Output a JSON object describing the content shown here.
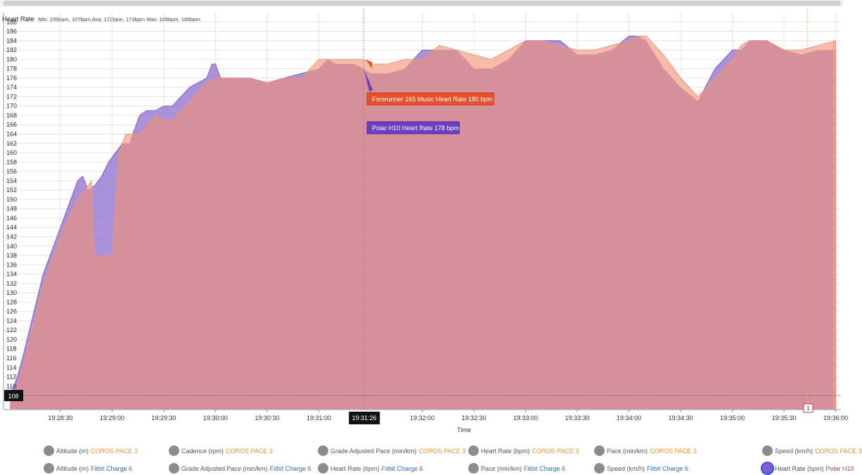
{
  "header": {
    "title": "Heart Rate",
    "stats": "Min: 105bpm, 107bpm Avg: 172bpm, 173bpm Max: 185bpm, 185bpm"
  },
  "chart_data": {
    "type": "area",
    "x_unit": "time",
    "xlabel": "Time",
    "ylabel": "",
    "ylim": [
      105,
      190
    ],
    "xlim": [
      "19:27:57",
      "19:36:03"
    ],
    "yticks": [
      110,
      112,
      114,
      116,
      118,
      120,
      122,
      124,
      126,
      128,
      130,
      132,
      134,
      136,
      138,
      140,
      142,
      144,
      146,
      148,
      150,
      152,
      154,
      156,
      158,
      160,
      162,
      164,
      166,
      168,
      170,
      172,
      174,
      176,
      178,
      180,
      182,
      184,
      186,
      188
    ],
    "xticks": [
      "19:28:30",
      "19:29:00",
      "19:29:30",
      "19:30:00",
      "19:30:30",
      "19:31:00",
      "19:32:00",
      "19:32:30",
      "19:33:00",
      "19:33:30",
      "19:34:00",
      "19:34:30",
      "19:35:00",
      "19:35:30",
      "19:36:00"
    ],
    "grid": true,
    "cursor": {
      "time": "19:31:26",
      "value_label": "108"
    },
    "marker_label": "1",
    "series": [
      {
        "name": "Polar H10 Heart Rate",
        "color": "#9b7fd4",
        "points": [
          [
            "19:28:01",
            108
          ],
          [
            "19:28:05",
            112
          ],
          [
            "19:28:08",
            116
          ],
          [
            "19:28:12",
            122
          ],
          [
            "19:28:16",
            128
          ],
          [
            "19:28:20",
            134
          ],
          [
            "19:28:24",
            138
          ],
          [
            "19:28:28",
            142
          ],
          [
            "19:28:32",
            146
          ],
          [
            "19:28:36",
            150
          ],
          [
            "19:28:40",
            154
          ],
          [
            "19:28:43",
            155
          ],
          [
            "19:28:46",
            152
          ],
          [
            "19:28:50",
            153
          ],
          [
            "19:28:54",
            155
          ],
          [
            "19:28:58",
            158
          ],
          [
            "19:29:02",
            160
          ],
          [
            "19:29:06",
            162
          ],
          [
            "19:29:10",
            162
          ],
          [
            "19:29:12",
            164
          ],
          [
            "19:29:16",
            168
          ],
          [
            "19:29:20",
            169
          ],
          [
            "19:29:25",
            169
          ],
          [
            "19:29:30",
            170
          ],
          [
            "19:29:35",
            170
          ],
          [
            "19:29:40",
            172
          ],
          [
            "19:29:45",
            174
          ],
          [
            "19:29:50",
            175
          ],
          [
            "19:29:55",
            176
          ],
          [
            "19:29:58",
            179
          ],
          [
            "19:30:00",
            179
          ],
          [
            "19:30:03",
            176
          ],
          [
            "19:30:10",
            176
          ],
          [
            "19:30:20",
            176
          ],
          [
            "19:30:30",
            175
          ],
          [
            "19:30:40",
            176
          ],
          [
            "19:30:50",
            177
          ],
          [
            "19:31:00",
            178
          ],
          [
            "19:31:05",
            180
          ],
          [
            "19:31:10",
            179
          ],
          [
            "19:31:15",
            179
          ],
          [
            "19:31:20",
            179
          ],
          [
            "19:31:26",
            178
          ],
          [
            "19:31:30",
            177
          ],
          [
            "19:31:40",
            177
          ],
          [
            "19:31:50",
            178
          ],
          [
            "19:32:00",
            182
          ],
          [
            "19:32:10",
            182
          ],
          [
            "19:32:20",
            182
          ],
          [
            "19:32:30",
            178
          ],
          [
            "19:32:40",
            178
          ],
          [
            "19:32:50",
            180
          ],
          [
            "19:33:00",
            184
          ],
          [
            "19:33:10",
            184
          ],
          [
            "19:33:20",
            184
          ],
          [
            "19:33:30",
            181
          ],
          [
            "19:33:40",
            181
          ],
          [
            "19:33:50",
            182
          ],
          [
            "19:34:00",
            185
          ],
          [
            "19:34:05",
            185
          ],
          [
            "19:34:10",
            184
          ],
          [
            "19:34:20",
            178
          ],
          [
            "19:34:30",
            174
          ],
          [
            "19:34:40",
            171
          ],
          [
            "19:34:50",
            178
          ],
          [
            "19:35:00",
            182
          ],
          [
            "19:35:05",
            182
          ],
          [
            "19:35:10",
            184
          ],
          [
            "19:35:20",
            184
          ],
          [
            "19:35:30",
            182
          ],
          [
            "19:35:40",
            181
          ],
          [
            "19:35:50",
            182
          ],
          [
            "19:36:00",
            182
          ]
        ]
      },
      {
        "name": "Forerunner 165 Music Heart Rate",
        "color": "#f5b5a0",
        "points": [
          [
            "19:28:01",
            107
          ],
          [
            "19:28:05",
            110
          ],
          [
            "19:28:08",
            114
          ],
          [
            "19:28:12",
            120
          ],
          [
            "19:28:16",
            126
          ],
          [
            "19:28:20",
            132
          ],
          [
            "19:28:24",
            136
          ],
          [
            "19:28:28",
            140
          ],
          [
            "19:28:32",
            144
          ],
          [
            "19:28:36",
            147
          ],
          [
            "19:28:40",
            150
          ],
          [
            "19:28:44",
            152
          ],
          [
            "19:28:48",
            154
          ],
          [
            "19:28:50",
            138
          ],
          [
            "19:28:55",
            138
          ],
          [
            "19:29:00",
            138
          ],
          [
            "19:29:04",
            160
          ],
          [
            "19:29:08",
            164
          ],
          [
            "19:29:12",
            164
          ],
          [
            "19:29:16",
            164
          ],
          [
            "19:29:20",
            166
          ],
          [
            "19:29:25",
            168
          ],
          [
            "19:29:30",
            167
          ],
          [
            "19:29:35",
            167
          ],
          [
            "19:29:40",
            169
          ],
          [
            "19:29:45",
            171
          ],
          [
            "19:29:50",
            173
          ],
          [
            "19:29:55",
            175
          ],
          [
            "19:30:00",
            176
          ],
          [
            "19:30:10",
            176
          ],
          [
            "19:30:20",
            176
          ],
          [
            "19:30:30",
            175
          ],
          [
            "19:30:40",
            176
          ],
          [
            "19:30:50",
            176
          ],
          [
            "19:31:00",
            180
          ],
          [
            "19:31:10",
            180
          ],
          [
            "19:31:20",
            180
          ],
          [
            "19:31:26",
            180
          ],
          [
            "19:31:30",
            179
          ],
          [
            "19:31:40",
            179
          ],
          [
            "19:31:50",
            180
          ],
          [
            "19:32:00",
            180
          ],
          [
            "19:32:10",
            183
          ],
          [
            "19:32:20",
            182
          ],
          [
            "19:32:30",
            181
          ],
          [
            "19:32:40",
            180
          ],
          [
            "19:32:50",
            182
          ],
          [
            "19:33:00",
            184
          ],
          [
            "19:33:10",
            184
          ],
          [
            "19:33:20",
            183
          ],
          [
            "19:33:30",
            182
          ],
          [
            "19:33:40",
            182
          ],
          [
            "19:33:50",
            183
          ],
          [
            "19:34:00",
            184
          ],
          [
            "19:34:05",
            185
          ],
          [
            "19:34:10",
            185
          ],
          [
            "19:34:20",
            181
          ],
          [
            "19:34:30",
            176
          ],
          [
            "19:34:40",
            172
          ],
          [
            "19:34:50",
            176
          ],
          [
            "19:35:00",
            180
          ],
          [
            "19:35:05",
            183
          ],
          [
            "19:35:10",
            184
          ],
          [
            "19:35:20",
            184
          ],
          [
            "19:35:30",
            182
          ],
          [
            "19:35:40",
            182
          ],
          [
            "19:35:50",
            183
          ],
          [
            "19:36:00",
            184
          ]
        ]
      }
    ],
    "tooltips": [
      {
        "series": "Forerunner 165 Music Heart Rate",
        "text": "Forerunner 165 Music Heart Rate 180 bpm",
        "color": "#e8502a"
      },
      {
        "series": "Polar H10 Heart Rate",
        "text": "Polar H10 Heart Rate 178 bpm",
        "color": "#6a3fc4"
      }
    ]
  },
  "legend": {
    "row1": [
      {
        "metric": "Altitude (m)",
        "device": "COROS PACE 3",
        "device_class": "dev-coros"
      },
      {
        "metric": "Cadence (rpm)",
        "device": "COROS PACE 3",
        "device_class": "dev-coros"
      },
      {
        "metric": "Grade Adjusted Pace (min/km)",
        "device": "COROS PACE 3",
        "device_class": "dev-coros"
      },
      {
        "metric": "Heart Rate (bpm)",
        "device": "COROS PACE 3",
        "device_class": "dev-coros"
      },
      {
        "metric": "Pace (min/km)",
        "device": "COROS PACE 3",
        "device_class": "dev-coros"
      },
      {
        "metric": "Speed (km/h)",
        "device": "COROS PACE 3",
        "device_class": "dev-coros"
      }
    ],
    "row2": [
      {
        "metric": "Altitude (m)",
        "device": "Fitbit Charge 6",
        "device_class": "dev-fitbit"
      },
      {
        "metric": "Grade Adjusted Pace (min/km)",
        "device": "Fitbit Charge 6",
        "device_class": "dev-fitbit"
      },
      {
        "metric": "Heart Rate (bpm)",
        "device": "Fitbit Charge 6",
        "device_class": "dev-fitbit"
      },
      {
        "metric": "Pace (min/km)",
        "device": "Fitbit Charge 6",
        "device_class": "dev-fitbit"
      },
      {
        "metric": "Speed (km/h)",
        "device": "Fitbit Charge 6",
        "device_class": "dev-fitbit"
      },
      {
        "metric": "Heart Rate (bpm)",
        "device": "Polar H10",
        "device_class": "dev-polar",
        "active": true
      }
    ]
  },
  "colors": {
    "overlap_fill": "#d6909a",
    "grid": "#e4e4e4",
    "cursor_line": "#888888",
    "label_bg": "#111111"
  }
}
